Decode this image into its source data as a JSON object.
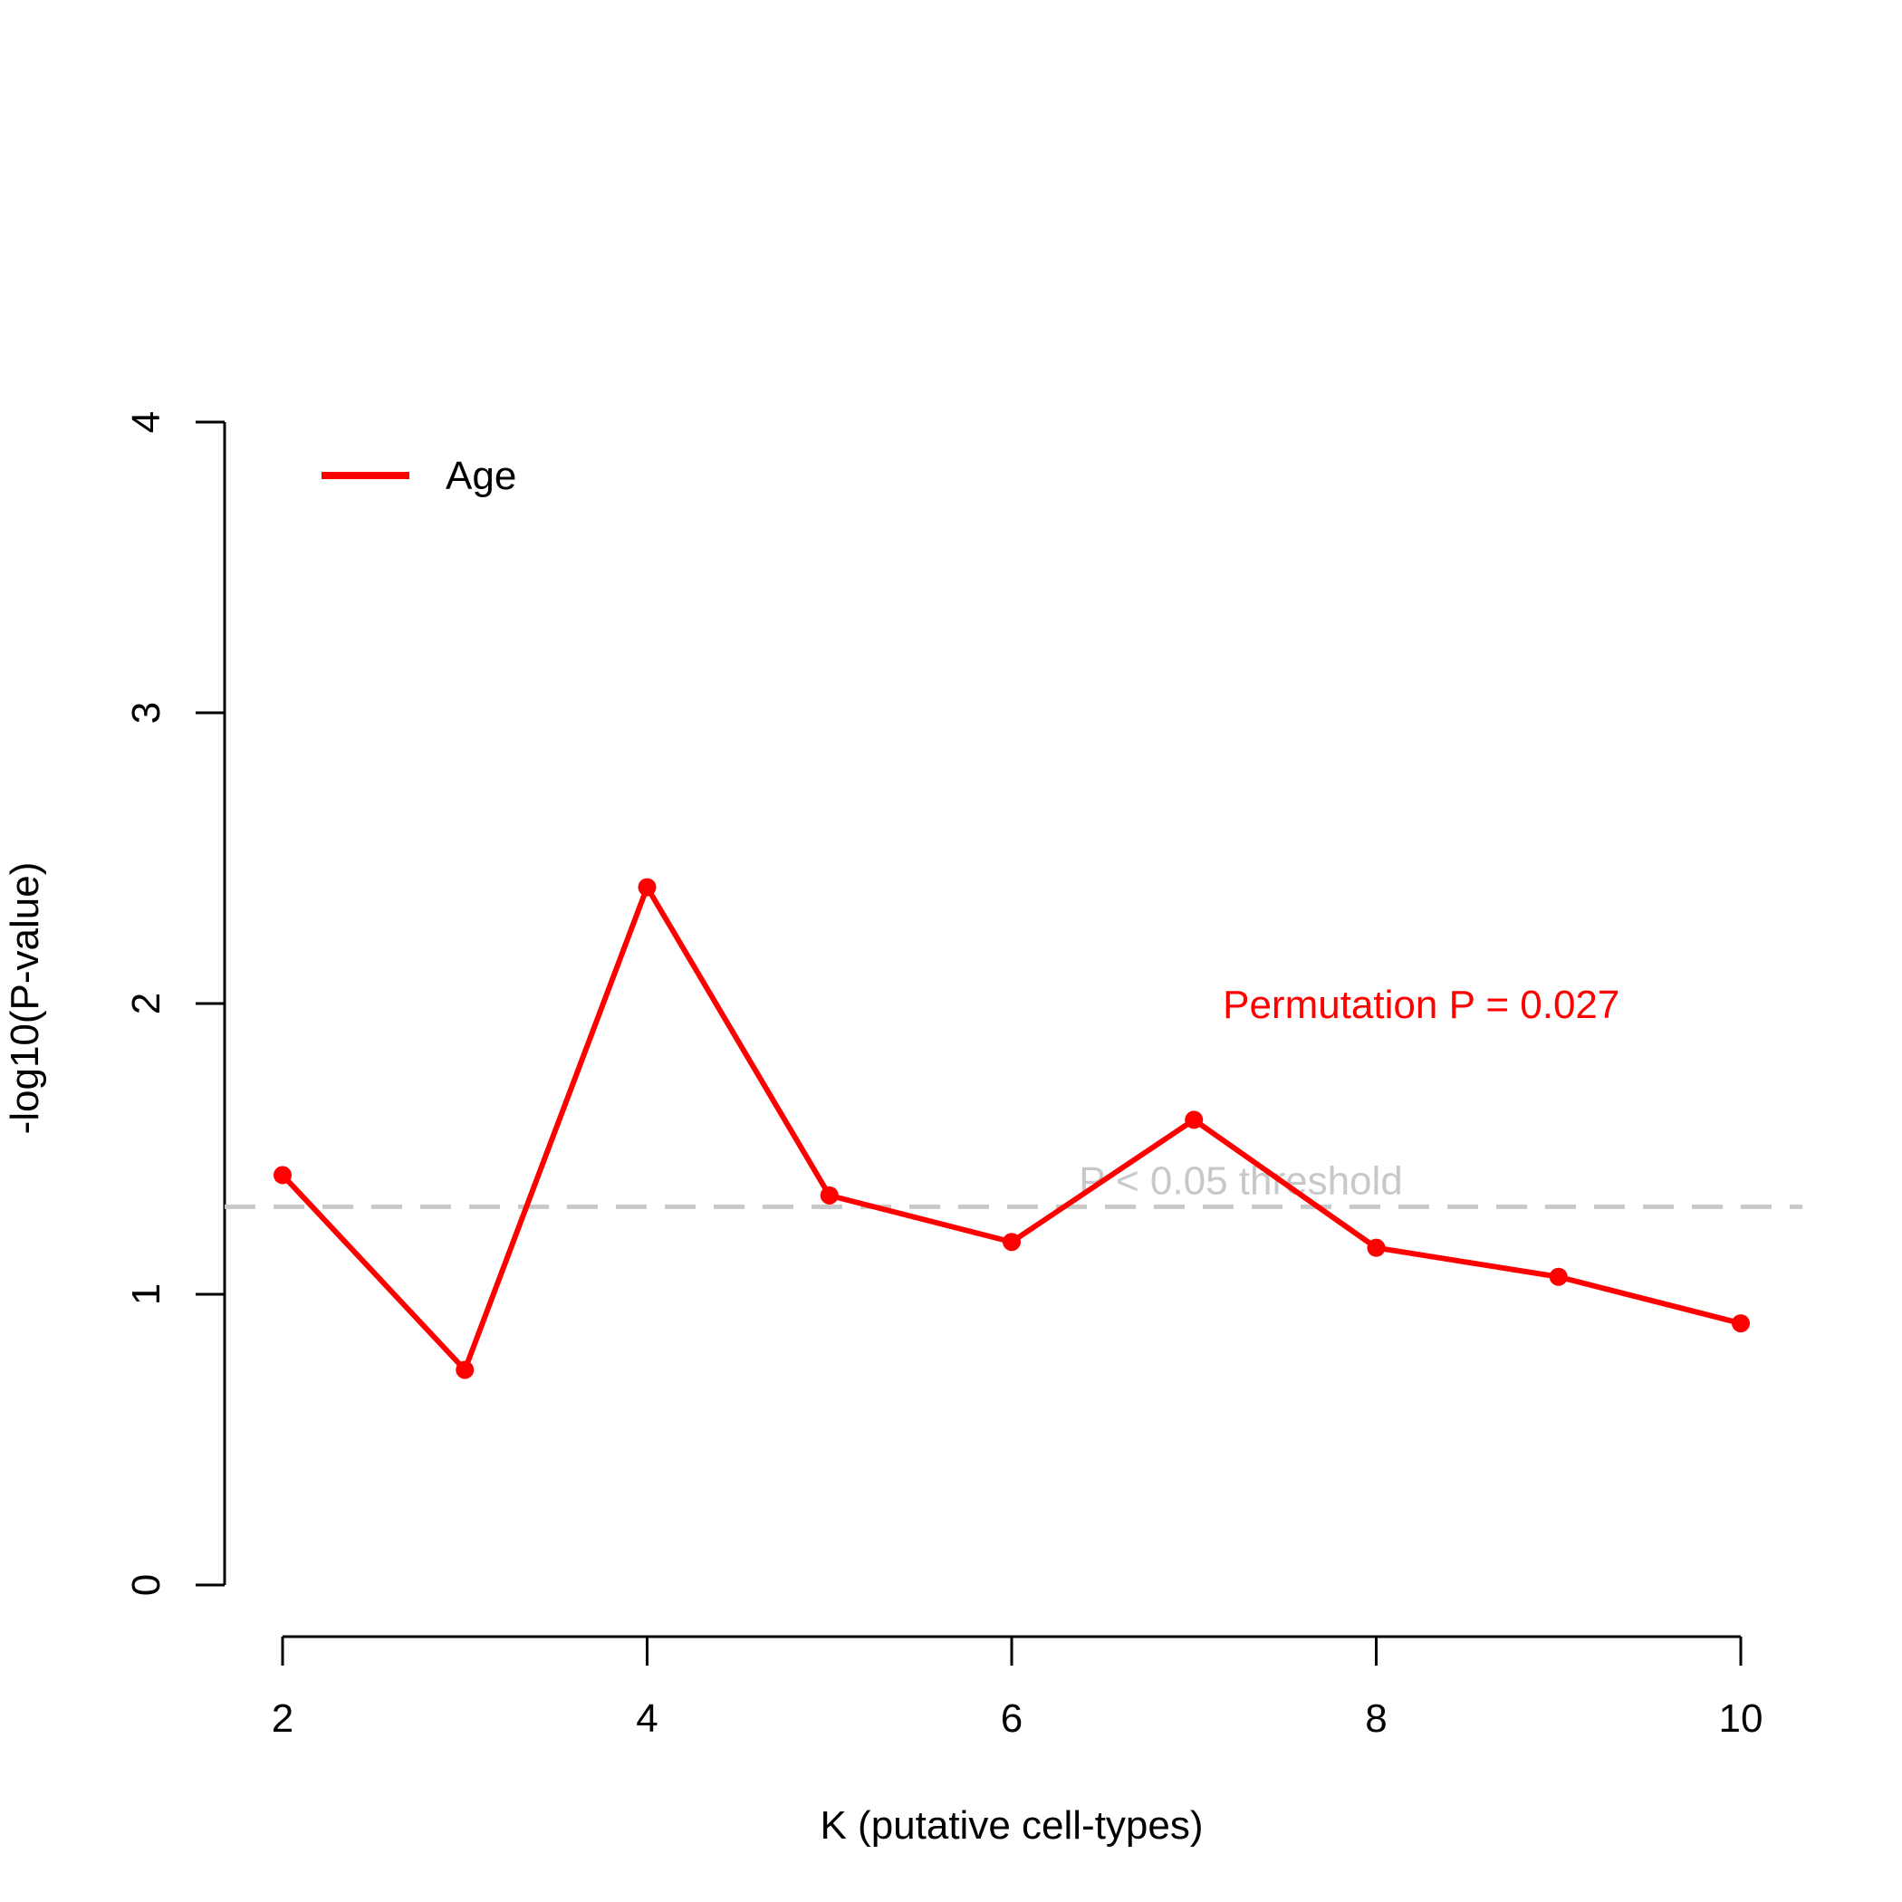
{
  "chart_data": {
    "type": "line",
    "xlabel": "K (putative cell-types)",
    "ylabel": "-log10(P-value)",
    "xlim": [
      2,
      10
    ],
    "ylim": [
      0,
      4
    ],
    "xticks": [
      "2",
      "4",
      "6",
      "8",
      "10"
    ],
    "yticks": [
      "0",
      "1",
      "2",
      "3",
      "4"
    ],
    "grid": false,
    "legend_position": "top-left",
    "series": [
      {
        "name": "Age",
        "color": "#ff0000",
        "x": [
          2,
          3,
          4,
          5,
          6,
          7,
          8,
          9,
          10
        ],
        "y": [
          1.41,
          0.74,
          2.4,
          1.34,
          1.18,
          1.6,
          1.16,
          1.06,
          0.9
        ]
      }
    ],
    "reference_line": {
      "y": 1.301,
      "color": "#c8c8c8",
      "style": "dashed",
      "label": "P < 0.05 threshold"
    },
    "annotations": [
      {
        "text": "Permutation P = 0.027",
        "x": 7,
        "y": 2.0,
        "color": "#ff0000"
      }
    ]
  }
}
